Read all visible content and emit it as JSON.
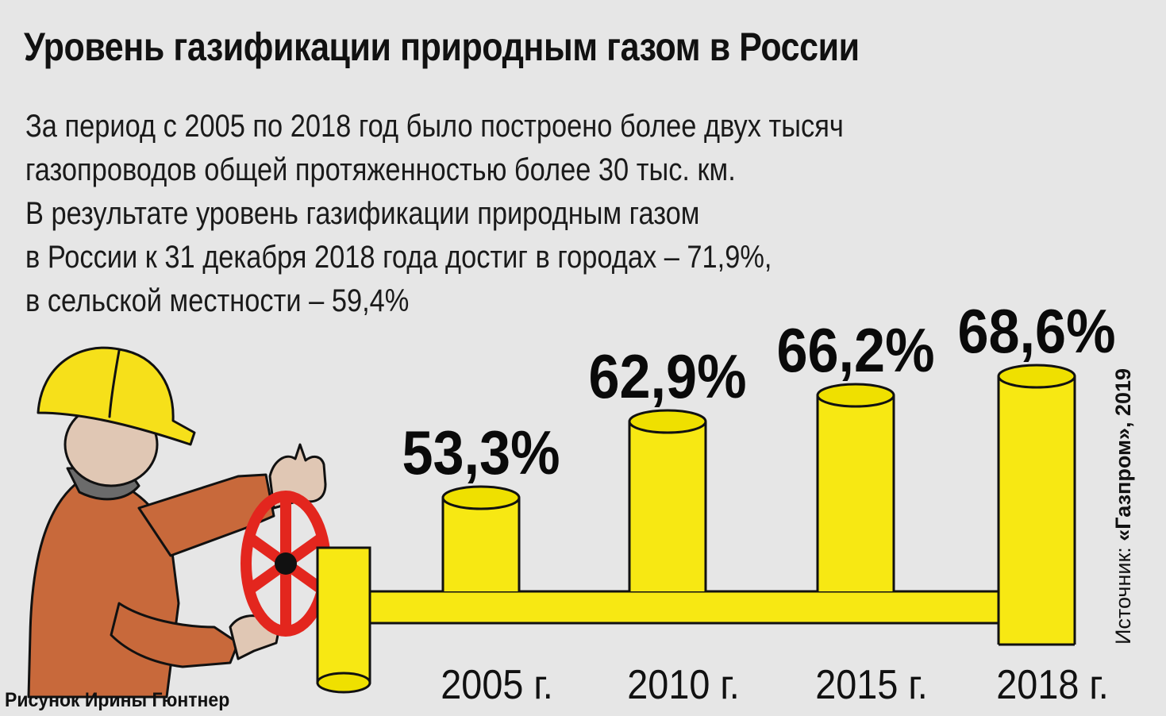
{
  "title": "Уровень газификации природным газом в России",
  "description": [
    "За период с 2005 по 2018 год было построено более двух тысяч",
    "газопроводов общей протяженностью более 30 тыс. км.",
    "В результате уровень газификации природным газом",
    "в России к 31 декабря 2018 года достиг в городах – 71,9%,",
    "в сельской местности – 59,4%"
  ],
  "source": {
    "prefix": "Источник: ",
    "name": "«Газпром», 2019"
  },
  "credit": "Рисунок Ирины Гюнтнер",
  "colors": {
    "background": "#e6e6e6",
    "pipe": "#f7e813",
    "pipe_top": "#efe000",
    "outline": "#111111",
    "handwheel": "#e3261e",
    "helmet": "#f6e01a",
    "jacket": "#c8693b"
  },
  "chart_data": {
    "type": "bar",
    "categories": [
      "2005 г.",
      "2010 г.",
      "2015 г.",
      "2018 г."
    ],
    "values": [
      53.3,
      62.9,
      66.2,
      68.6
    ],
    "value_labels": [
      "53,3%",
      "62,9%",
      "66,2%",
      "68,6%"
    ],
    "title": "Уровень газификации природным газом в России",
    "ylim": [
      0,
      100
    ],
    "grid": false,
    "legend": "none"
  }
}
